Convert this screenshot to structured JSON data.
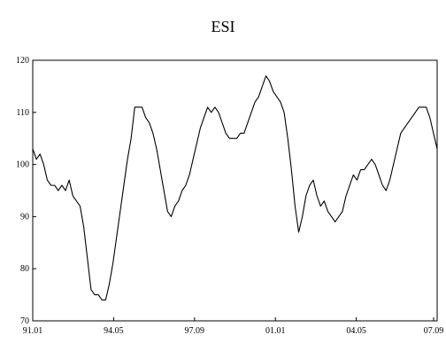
{
  "chart_data": {
    "type": "line",
    "title": "ESI",
    "xlabel": "",
    "ylabel": "",
    "ylim": [
      70,
      120
    ],
    "yticks": [
      70,
      80,
      90,
      100,
      110,
      120
    ],
    "x_tick_labels": [
      "91.01",
      "94.05",
      "97.09",
      "01.01",
      "04.05",
      "07.09"
    ],
    "x_start": "1991-01",
    "x_end": "2007-12",
    "legend": "none",
    "grid": false,
    "series": [
      {
        "values": [
          103,
          101,
          102,
          100,
          97,
          96,
          96,
          95,
          96,
          95,
          97,
          94,
          93,
          92,
          88,
          82,
          76,
          75,
          75,
          74,
          74,
          77,
          81,
          86,
          91,
          96,
          101,
          105,
          111,
          111,
          111,
          109,
          108,
          106,
          103,
          99,
          95,
          91,
          90,
          92,
          93,
          95,
          96,
          98,
          101,
          104,
          107,
          109,
          111,
          110,
          111,
          110,
          108,
          106,
          105,
          105,
          105,
          106,
          106,
          108,
          110,
          112,
          113,
          115,
          117,
          116,
          114,
          113,
          112,
          110,
          105,
          99,
          92,
          87,
          90,
          94,
          96,
          97,
          94,
          92,
          93,
          91,
          90,
          89,
          90,
          91,
          94,
          96,
          98,
          97,
          99,
          99,
          100,
          101,
          100,
          98,
          96,
          95,
          97,
          100,
          103,
          106,
          107,
          108,
          109,
          110,
          111,
          111,
          111,
          109,
          106,
          103
        ]
      }
    ]
  }
}
